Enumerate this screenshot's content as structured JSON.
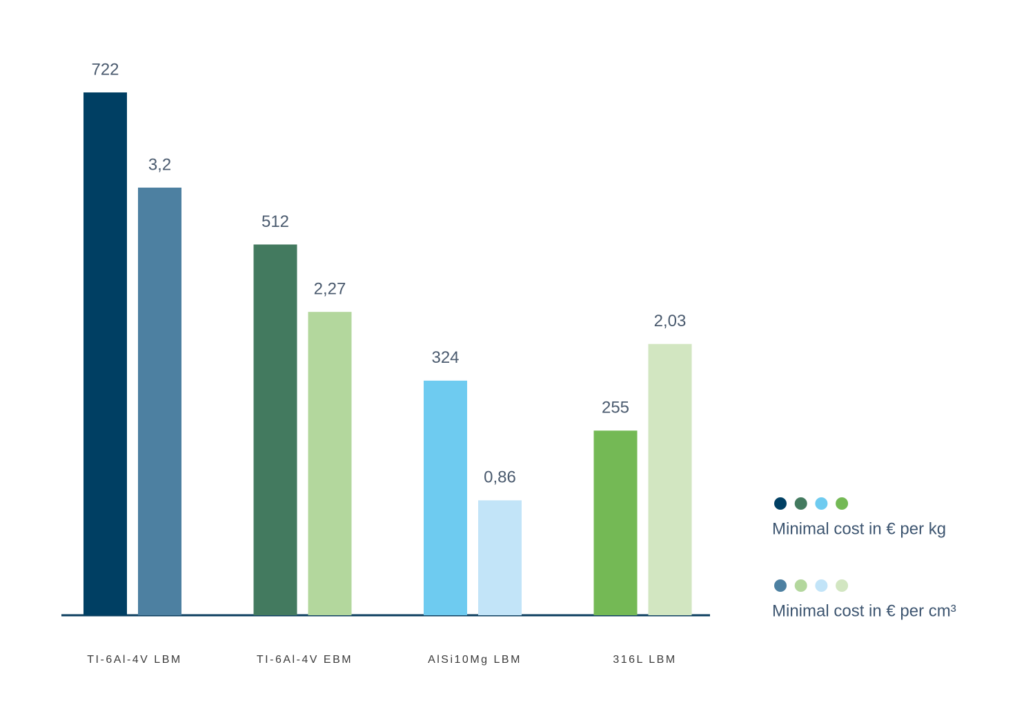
{
  "chart_data": {
    "type": "bar",
    "categories": [
      "TI-6Al-4V LBM",
      "TI-6Al-4V EBM",
      "AlSi10Mg LBM",
      "316L LBM"
    ],
    "series": [
      {
        "name": "Minimal cost in € per kg",
        "colors": [
          "#003f63",
          "#437a5f",
          "#6ecbf0",
          "#74b955"
        ],
        "values": [
          722,
          512,
          324,
          255
        ]
      },
      {
        "name": "Minimal cost in € per cm³",
        "colors": [
          "#4d80a1",
          "#b3d79d",
          "#c2e4f8",
          "#d2e6c1"
        ],
        "values": [
          3.2,
          2.27,
          0.86,
          2.03
        ],
        "value_labels": [
          "3,2",
          "2,27",
          "0,86",
          "2,03"
        ]
      }
    ]
  }
}
